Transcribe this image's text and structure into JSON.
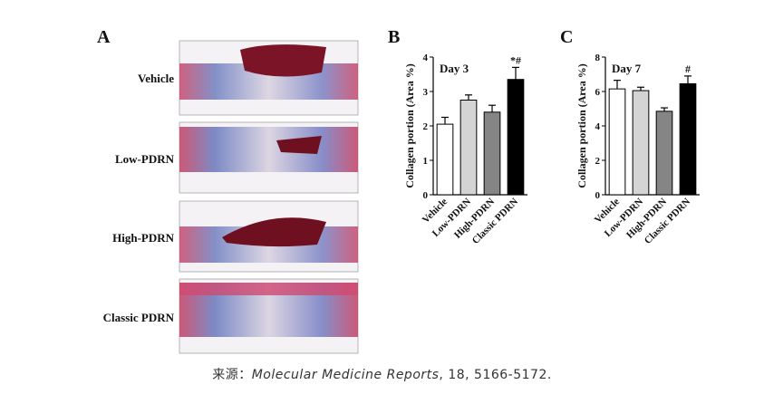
{
  "panel_a": {
    "label": "A",
    "rows": [
      "Vehicle",
      "Low-PDRN",
      "High-PDRN",
      "Classic PDRN"
    ]
  },
  "chart_data": [
    {
      "type": "bar",
      "panel": "B",
      "annotation": "Day 3",
      "ylabel": "Collagen portion (Area %)",
      "categories": [
        "Vehicle",
        "Low-PDRN",
        "High-PDRN",
        "Classic PDRN"
      ],
      "values": [
        2.05,
        2.75,
        2.4,
        3.35
      ],
      "errors": [
        0.2,
        0.15,
        0.2,
        0.35
      ],
      "colors": [
        "#ffffff",
        "#d4d4d4",
        "#858585",
        "#000000"
      ],
      "significance": [
        {
          "index": 3,
          "text": "*#"
        }
      ],
      "ylim": [
        0,
        4
      ],
      "yticks": [
        0,
        1,
        2,
        3,
        4
      ]
    },
    {
      "type": "bar",
      "panel": "C",
      "annotation": "Day 7",
      "ylabel": "Collagen portion (Area %)",
      "categories": [
        "Vehicle",
        "Low-PDRN",
        "High-PDRN",
        "Classic PDRN"
      ],
      "values": [
        6.15,
        6.05,
        4.85,
        6.45
      ],
      "errors": [
        0.5,
        0.2,
        0.2,
        0.45
      ],
      "colors": [
        "#ffffff",
        "#d4d4d4",
        "#858585",
        "#000000"
      ],
      "significance": [
        {
          "index": 3,
          "text": "#"
        }
      ],
      "ylim": [
        0,
        8
      ],
      "yticks": [
        0,
        2,
        4,
        6,
        8
      ]
    }
  ],
  "caption": {
    "prefix": "来源：",
    "journal": "Molecular Medicine Reports",
    "rest": ", 18, 5166-5172."
  }
}
